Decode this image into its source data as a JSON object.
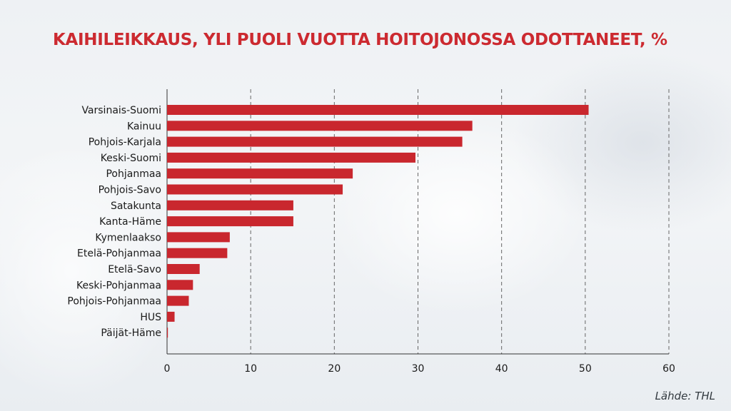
{
  "header": {
    "title": "KAIHILEIKKAUS, YLI PUOLI VUOTTA HOITOJONOSSA ODOTTANEET, %"
  },
  "footer": {
    "source": "Lähde: THL"
  },
  "colors": {
    "bar": "#c9272e",
    "title": "#cc2a30",
    "grid": "#666666",
    "axis": "#333333"
  },
  "chart_data": {
    "type": "bar",
    "orientation": "horizontal",
    "title": "KAIHILEIKKAUS, YLI PUOLI VUOTTA HOITOJONOSSA ODOTTANEET, %",
    "xlabel": "",
    "ylabel": "",
    "xlim": [
      0,
      60
    ],
    "xticks": [
      0,
      10,
      20,
      30,
      40,
      50,
      60
    ],
    "grid": "vertical dashed",
    "categories": [
      "Varsinais-Suomi",
      "Kainuu",
      "Pohjois-Karjala",
      "Keski-Suomi",
      "Pohjanmaa",
      "Pohjois-Savo",
      "Satakunta",
      "Kanta-Häme",
      "Kymenlaakso",
      "Etelä-Pohjanmaa",
      "Etelä-Savo",
      "Keski-Pohjanmaa",
      "Pohjois-Pohjanmaa",
      "HUS",
      "Päijät-Häme"
    ],
    "values": [
      50.4,
      36.5,
      35.3,
      29.7,
      22.2,
      21.0,
      15.1,
      15.1,
      7.5,
      7.2,
      3.9,
      3.1,
      2.6,
      0.9,
      0.1
    ]
  }
}
